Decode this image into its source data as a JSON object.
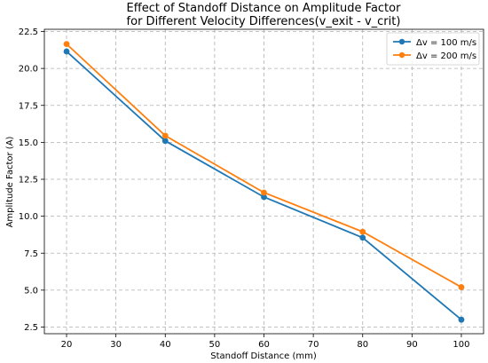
{
  "chart_data": {
    "type": "line",
    "title": [
      "Effect of Standoff Distance on Amplitude Factor",
      "for Different Velocity Differences(v_exit - v_crit)"
    ],
    "xlabel": "Standoff Distance (mm)",
    "ylabel": "Amplitude Factor (A)",
    "xlim": [
      15.5,
      104.5
    ],
    "ylim": [
      2.05,
      22.65
    ],
    "xticks": [
      20,
      30,
      40,
      50,
      60,
      70,
      80,
      90,
      100
    ],
    "yticks": [
      2.5,
      5.0,
      7.5,
      10.0,
      12.5,
      15.0,
      17.5,
      20.0,
      22.5
    ],
    "ytick_labels": [
      "2.5",
      "5.0",
      "7.5",
      "10.0",
      "12.5",
      "15.0",
      "17.5",
      "20.0",
      "22.5"
    ],
    "grid": true,
    "legend_position": "top-right",
    "x": [
      20,
      40,
      60,
      80,
      100
    ],
    "series": [
      {
        "name": "Δv = 100 m/s",
        "color": "#1f77b4",
        "values": [
          21.15,
          15.1,
          11.3,
          8.55,
          3.0
        ]
      },
      {
        "name": "Δv = 200 m/s",
        "color": "#ff7f0e",
        "values": [
          21.65,
          15.45,
          11.6,
          8.95,
          5.2
        ]
      }
    ]
  }
}
